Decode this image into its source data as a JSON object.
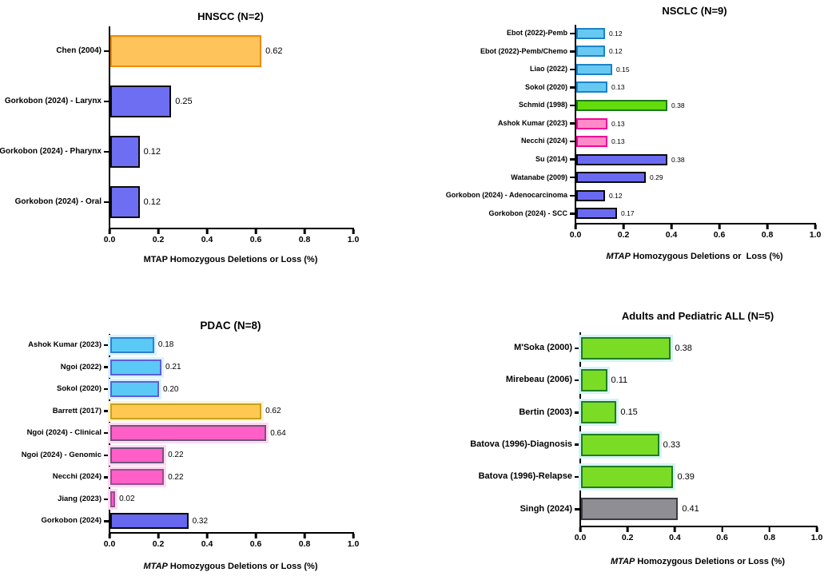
{
  "figure": {
    "background": "#FFFFFF"
  },
  "chart_data": [
    {
      "id": "hnscc",
      "type": "bar",
      "orientation": "horizontal",
      "title": "HNSCC (N=2)",
      "xlabel": {
        "gene": "MTAP",
        "gene_italic": false,
        "rest": " Homozygous Deletions or Loss (%)"
      },
      "xlim": [
        0,
        1
      ],
      "xticks": [
        0,
        0.2,
        0.4,
        0.6,
        0.8,
        1.0
      ],
      "grid": false,
      "legend": "none",
      "bars": [
        {
          "label": "Chen (2004)",
          "value": 0.62,
          "fill": "#FFC35C",
          "border": "#F08A00",
          "glow": null
        },
        {
          "label": "Gorkobon (2024) - Larynx",
          "value": 0.25,
          "fill": "#6E6EF2",
          "border": "#0A0A0A",
          "glow": null
        },
        {
          "label": "Gorkobon (2024) - Pharynx",
          "value": 0.12,
          "fill": "#6E6EF2",
          "border": "#0A0A0A",
          "glow": null
        },
        {
          "label": "Gorkobon (2024) - Oral",
          "value": 0.12,
          "fill": "#6E6EF2",
          "border": "#0A0A0A",
          "glow": null
        }
      ]
    },
    {
      "id": "nsclc",
      "type": "bar",
      "orientation": "horizontal",
      "title": "NSCLC (N=9)",
      "xlabel": {
        "gene": "MTAP",
        "gene_italic": true,
        "rest": " Homozygous Deletions or  Loss (%)"
      },
      "xlim": [
        0,
        1
      ],
      "xticks": [
        0,
        0.2,
        0.4,
        0.6,
        0.8,
        1.0
      ],
      "grid": false,
      "legend": "none",
      "bars": [
        {
          "label": "Ebot (2022)-Pemb",
          "value": 0.12,
          "fill": "#67C9F2",
          "border": "#1B83C8",
          "glow": null
        },
        {
          "label": "Ebot (2022)-Pemb/Chemo",
          "value": 0.12,
          "fill": "#67C9F2",
          "border": "#1B83C8",
          "glow": null
        },
        {
          "label": "Liao (2022)",
          "value": 0.15,
          "fill": "#67C9F2",
          "border": "#1B83C8",
          "glow": null
        },
        {
          "label": "Sokol (2020)",
          "value": 0.13,
          "fill": "#67C9F2",
          "border": "#1B83C8",
          "glow": null
        },
        {
          "label": "Schmid (1998)",
          "value": 0.38,
          "fill": "#63DB0C",
          "border": "#1B7A1B",
          "glow": null
        },
        {
          "label": "Ashok Kumar (2023)",
          "value": 0.13,
          "fill": "#FF8AC8",
          "border": "#F20497",
          "glow": null
        },
        {
          "label": "Necchi (2024)",
          "value": 0.13,
          "fill": "#FF8AC8",
          "border": "#F20497",
          "glow": null
        },
        {
          "label": "Su (2014)",
          "value": 0.38,
          "fill": "#6A6AF0",
          "border": "#0A0A0A",
          "glow": null
        },
        {
          "label": "Watanabe (2009)",
          "value": 0.29,
          "fill": "#6A6AF0",
          "border": "#0A0A0A",
          "glow": null
        },
        {
          "label": "Gorkobon (2024) - Adenocarcinoma",
          "value": 0.12,
          "fill": "#6A6AF0",
          "border": "#0A0A0A",
          "glow": null
        },
        {
          "label": "Gorkobon (2024) - SCC",
          "value": 0.17,
          "fill": "#6A6AF0",
          "border": "#0A0A0A",
          "glow": null
        }
      ]
    },
    {
      "id": "pdac",
      "type": "bar",
      "orientation": "horizontal",
      "title": "PDAC (N=8)",
      "xlabel": {
        "gene": "MTAP",
        "gene_italic": true,
        "rest": " Homozygous Deletions or Loss (%)"
      },
      "xlim": [
        0,
        1
      ],
      "xticks": [
        0,
        0.2,
        0.4,
        0.6,
        0.8,
        1.0
      ],
      "grid": false,
      "legend": "none",
      "bars": [
        {
          "label": "Ashok Kumar (2023)",
          "value": 0.18,
          "fill": "#5BC9F5",
          "border": "#2E7FD2",
          "glow": "#D9F3FD"
        },
        {
          "label": "Ngoi (2022)",
          "value": 0.21,
          "fill": "#5BC9F5",
          "border": "#5F5FD8",
          "glow": "#D9F3FD"
        },
        {
          "label": "Sokol (2020)",
          "value": 0.2,
          "fill": "#5BC9F5",
          "border": "#5F5FD8",
          "glow": "#D9F3FD"
        },
        {
          "label": "Barrett (2017)",
          "value": 0.62,
          "fill": "#FFC851",
          "border": "#C6A11E",
          "glow": "#FFF3CC"
        },
        {
          "label": "Ngoi (2024) - Clinical",
          "value": 0.64,
          "fill": "#FF5FC6",
          "border": "#6E567C",
          "glow": "#FFD9F0"
        },
        {
          "label": "Ngoi (2024) - Genomic",
          "value": 0.22,
          "fill": "#FF5FC6",
          "border": "#6E567C",
          "glow": "#FFD9F0"
        },
        {
          "label": "Necchi (2024)",
          "value": 0.22,
          "fill": "#FF5FC6",
          "border": "#91538E",
          "glow": "#FFD9F0"
        },
        {
          "label": "Jiang (2023)",
          "value": 0.02,
          "fill": "#FF5FC6",
          "border": "#91538E",
          "glow": "#FFD9F0"
        },
        {
          "label": "Gorkobon (2024)",
          "value": 0.32,
          "fill": "#6666EE",
          "border": "#0A0A0A",
          "glow": null
        }
      ]
    },
    {
      "id": "all",
      "type": "bar",
      "orientation": "horizontal",
      "title": "Adults and Pediatric ALL (N=5)",
      "xlabel": {
        "gene": "MTAP",
        "gene_italic": true,
        "rest": " Homozygous Deletions or Loss (%)"
      },
      "xlim": [
        0,
        1
      ],
      "xticks": [
        0,
        0.2,
        0.4,
        0.6,
        0.8,
        1.0
      ],
      "grid": false,
      "legend": "none",
      "bars": [
        {
          "label": "M'Soka (2000)",
          "value": 0.38,
          "fill": "#7BDC26",
          "border": "#1E7C1E",
          "glow": "#D5F3F6"
        },
        {
          "label": "Mirebeau (2006)",
          "value": 0.11,
          "fill": "#7BDC26",
          "border": "#1E7C1E",
          "glow": "#D5F3F6"
        },
        {
          "label": "Bertin (2003)",
          "value": 0.15,
          "fill": "#7BDC26",
          "border": "#1E7C1E",
          "glow": "#D5F3F6"
        },
        {
          "label": "Batova (1996)-Diagnosis",
          "value": 0.33,
          "fill": "#7BDC26",
          "border": "#1E7C1E",
          "glow": "#D5F3F6"
        },
        {
          "label": "Batova (1996)-Relapse",
          "value": 0.39,
          "fill": "#7BDC26",
          "border": "#1E7C1E",
          "glow": "#D5F3F6"
        },
        {
          "label": "Singh (2024)",
          "value": 0.41,
          "fill": "#8F8F93",
          "border": "#3A3A46",
          "glow": null
        }
      ]
    }
  ]
}
